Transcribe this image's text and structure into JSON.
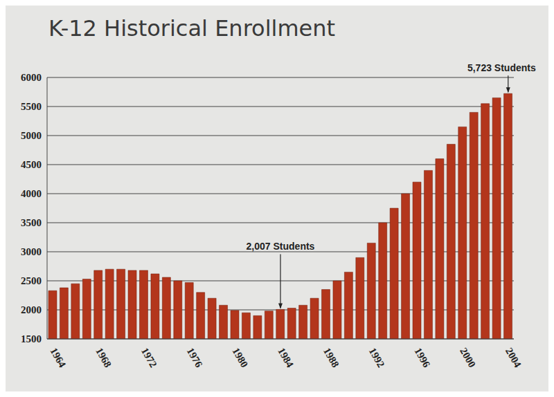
{
  "chart_data": {
    "type": "bar",
    "title": "K-12 Historical Enrollment",
    "categories": [
      "1964",
      null,
      null,
      null,
      "1968",
      null,
      null,
      null,
      "1972",
      null,
      null,
      null,
      "1976",
      null,
      null,
      null,
      "1980",
      null,
      null,
      null,
      "1984",
      null,
      null,
      null,
      "1988",
      null,
      null,
      null,
      "1992",
      null,
      null,
      null,
      "1996",
      null,
      null,
      null,
      "2000",
      null,
      null,
      null,
      "2004"
    ],
    "values": [
      2330,
      2380,
      2450,
      2530,
      2680,
      2700,
      2700,
      2680,
      2680,
      2620,
      2560,
      2500,
      2470,
      2300,
      2200,
      2080,
      1990,
      1950,
      1900,
      1980,
      2007,
      2030,
      2080,
      2200,
      2350,
      2500,
      2650,
      2900,
      3150,
      3500,
      3750,
      4000,
      4200,
      4400,
      4600,
      4850,
      5150,
      5400,
      5550,
      5650,
      5723
    ],
    "color": "#b3361c",
    "ylim": [
      1500,
      6000
    ],
    "yticks": [
      1500,
      2000,
      2500,
      3000,
      3500,
      4000,
      4500,
      5000,
      5500,
      6000
    ],
    "grid": true,
    "annotations": [
      {
        "text": "2,007 Students",
        "category": "1984",
        "value": 2007
      },
      {
        "text": "5,723 Students",
        "category": "2004",
        "value": 5723
      }
    ]
  }
}
